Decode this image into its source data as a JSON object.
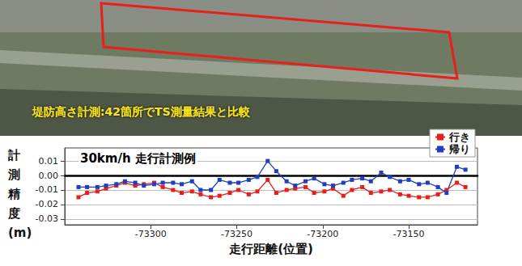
{
  "chart_data": {
    "type": "line",
    "photo_caption": "堤防高さ計測:42箇所でTS測量結果と比較",
    "annotation": "30km/h 走行計測例",
    "xlabel": "走行距離(位置)",
    "ylabel": "計測精度(m)",
    "xlim": [
      -73350,
      -73110
    ],
    "xticks": [
      -73300,
      -73250,
      -73200,
      -73150
    ],
    "ylim": [
      -0.034,
      0.019
    ],
    "yticks": [
      0.01,
      {
        "value": 0,
        "label": "0.00"
      },
      -0.01,
      -0.02,
      -0.03
    ],
    "grid": true,
    "legend": "top-right",
    "marker": "square",
    "x": [
      -73342,
      -73337,
      -73331,
      -73326,
      -73320,
      -73315,
      -73309,
      -73304,
      -73298,
      -73293,
      -73287,
      -73282,
      -73276,
      -73271,
      -73265,
      -73260,
      -73254,
      -73249,
      -73243,
      -73238,
      -73232,
      -73227,
      -73221,
      -73216,
      -73210,
      -73205,
      -73199,
      -73194,
      -73188,
      -73183,
      -73177,
      -73172,
      -73166,
      -73161,
      -73155,
      -73150,
      -73144,
      -73139,
      -73133,
      -73128,
      -73122,
      -73117
    ],
    "series": [
      {
        "name": "行き",
        "color": "#e3201b",
        "values": [
          -0.015,
          -0.012,
          -0.011,
          -0.009,
          -0.007,
          -0.005,
          -0.007,
          -0.006,
          -0.005,
          -0.008,
          -0.01,
          -0.012,
          -0.011,
          -0.013,
          -0.015,
          -0.014,
          -0.012,
          -0.01,
          -0.013,
          -0.011,
          -0.003,
          -0.012,
          -0.01,
          -0.009,
          -0.008,
          -0.012,
          -0.011,
          -0.009,
          -0.014,
          -0.01,
          -0.008,
          -0.012,
          -0.011,
          -0.01,
          -0.013,
          -0.014,
          -0.015,
          -0.015,
          -0.013,
          -0.01,
          -0.005,
          -0.008
        ]
      },
      {
        "name": "帰り",
        "color": "#1f3fbf",
        "values": [
          -0.008,
          -0.008,
          -0.008,
          -0.007,
          -0.006,
          -0.004,
          -0.005,
          -0.007,
          -0.006,
          -0.005,
          -0.005,
          -0.006,
          -0.004,
          -0.01,
          -0.01,
          -0.003,
          -0.005,
          -0.005,
          -0.003,
          -0.001,
          0.01,
          0.003,
          -0.004,
          -0.007,
          -0.004,
          -0.002,
          -0.006,
          -0.007,
          -0.005,
          -0.003,
          -0.002,
          -0.004,
          0.002,
          -0.001,
          -0.004,
          -0.003,
          -0.006,
          -0.005,
          -0.008,
          -0.012,
          0.006,
          0.004
        ]
      }
    ]
  }
}
